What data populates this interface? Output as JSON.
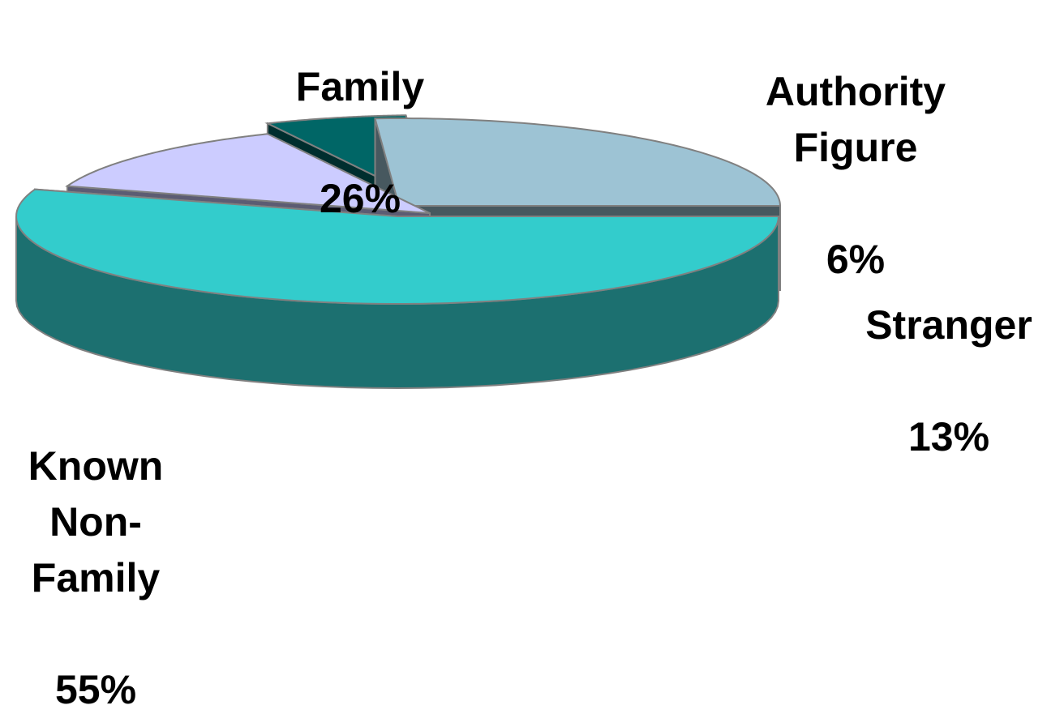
{
  "chart_data": {
    "type": "pie",
    "style": "3d-exploded",
    "legend": "none",
    "slices": [
      {
        "label": "Family",
        "label_display": "Family",
        "value": 26,
        "value_label": "26%",
        "color": "#9DC3D4"
      },
      {
        "label": "Authority Figure",
        "label_display": "Authority\nFigure",
        "value": 6,
        "value_label": "6%",
        "color": "#006666"
      },
      {
        "label": "Stranger",
        "label_display": "Stranger",
        "value": 13,
        "value_label": "13%",
        "color": "#CCCCFF"
      },
      {
        "label": "Known Non-Family",
        "label_display": "Known\nNon-\nFamily",
        "value": 55,
        "value_label": "55%",
        "color": "#33CCCC"
      }
    ]
  }
}
